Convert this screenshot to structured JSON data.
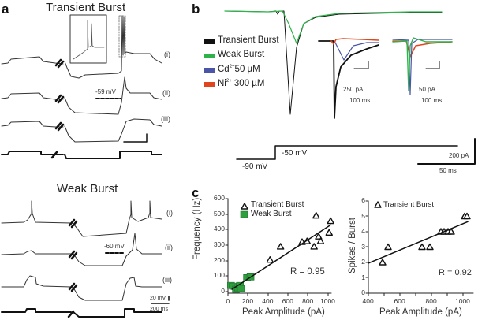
{
  "panel_a": {
    "letter": "a",
    "transient_title": "Transient Burst",
    "weak_title": "Weak Burst",
    "trace_labels": [
      "(i)",
      "(ii)",
      "(iii)"
    ],
    "transient_threshold": "-59 mV",
    "weak_threshold": "-60 mV",
    "scale_voltage": "20 mV",
    "scale_time": "200 ms"
  },
  "panel_b": {
    "letter": "b",
    "legend": [
      {
        "label": "Transient Burst",
        "color": "#111111"
      },
      {
        "label": "Weak Burst",
        "color": "#2db34a"
      },
      {
        "label": "Cd",
        "sup": "2+",
        "suffix": "50 µM",
        "color": "#4a55a8"
      },
      {
        "label": "Ni",
        "sup": "2+",
        "suffix": " 300 µM",
        "color": "#e0461e"
      }
    ],
    "inset1_scale_current": "250 pA",
    "inset1_scale_time": "100 ms",
    "inset2_scale_current": "50 pA",
    "inset2_scale_time": "100 ms",
    "holding_label": "-90 mV",
    "step_label": "-50 mV",
    "scale_current": "200 pA",
    "scale_time": "50 ms"
  },
  "panel_c": {
    "letter": "c"
  },
  "chart_data": [
    {
      "type": "scatter",
      "title": "",
      "xlabel": "Peak Amplitude (pA)",
      "ylabel": "Frequency (Hz)",
      "xlim": [
        0,
        1050
      ],
      "ylim": [
        0,
        600
      ],
      "xticks": [
        0,
        200,
        400,
        600,
        800,
        1000
      ],
      "yticks": [
        0,
        100,
        200,
        300,
        400,
        500,
        600
      ],
      "legend_position": "upper left",
      "grid": false,
      "series": [
        {
          "name": "Transient Burst",
          "marker": "open-triangle",
          "points": [
            [
              420,
              205
            ],
            [
              525,
              290
            ],
            [
              740,
              320
            ],
            [
              790,
              325
            ],
            [
              860,
              290
            ],
            [
              880,
              490
            ],
            [
              905,
              355
            ],
            [
              925,
              325
            ],
            [
              1010,
              380
            ],
            [
              1025,
              455
            ]
          ]
        },
        {
          "name": "Weak Burst",
          "marker": "filled-square",
          "color": "#2e9e3e",
          "points": [
            [
              30,
              40
            ],
            [
              50,
              35
            ],
            [
              80,
              15
            ],
            [
              100,
              25
            ],
            [
              120,
              40
            ],
            [
              130,
              20
            ],
            [
              190,
              90
            ],
            [
              225,
              95
            ]
          ]
        }
      ],
      "fit_line": {
        "x": [
          40,
          1025
        ],
        "y": [
          15,
          430
        ]
      },
      "annotation": "R = 0.95"
    },
    {
      "type": "scatter",
      "title": "",
      "xlabel": "Peak Amplitude (pA)",
      "ylabel": "Spikes / Burst",
      "xlim": [
        400,
        1080
      ],
      "ylim": [
        0,
        6
      ],
      "xticks": [
        400,
        600,
        800,
        1000
      ],
      "yticks": [
        0,
        1,
        2,
        3,
        4,
        5,
        6
      ],
      "legend_position": "upper left",
      "grid": false,
      "series": [
        {
          "name": "Transient Burst",
          "marker": "open-triangle",
          "points": [
            [
              490,
              2
            ],
            [
              525,
              3
            ],
            [
              740,
              3
            ],
            [
              790,
              3
            ],
            [
              860,
              4
            ],
            [
              880,
              4
            ],
            [
              905,
              4
            ],
            [
              925,
              4
            ],
            [
              1010,
              5
            ],
            [
              1025,
              5
            ]
          ]
        }
      ],
      "fit_line": {
        "x": [
          400,
          1030
        ],
        "y": [
          1.95,
          4.65
        ]
      },
      "annotation": "R = 0.92"
    }
  ]
}
